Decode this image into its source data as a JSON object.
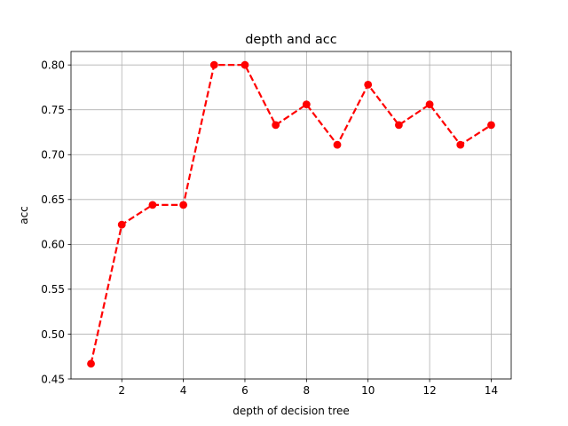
{
  "chart_data": {
    "type": "line",
    "title": "depth and acc",
    "xlabel": "depth of decision tree",
    "ylabel": "acc",
    "x": [
      1,
      2,
      3,
      4,
      5,
      6,
      7,
      8,
      9,
      10,
      11,
      12,
      13,
      14
    ],
    "series": [
      {
        "values": [
          0.467,
          0.622,
          0.644,
          0.644,
          0.8,
          0.8,
          0.733,
          0.756,
          0.711,
          0.778,
          0.733,
          0.756,
          0.711,
          0.733
        ],
        "color": "#ff0000",
        "linestyle": "dashed",
        "marker": "circle"
      }
    ],
    "xlim": [
      0.35,
      14.65
    ],
    "ylim": [
      0.45,
      0.815
    ],
    "xticks": [
      "2",
      "4",
      "6",
      "8",
      "10",
      "12",
      "14"
    ],
    "yticks": [
      "0.45",
      "0.50",
      "0.55",
      "0.60",
      "0.65",
      "0.70",
      "0.75",
      "0.80"
    ],
    "grid": true
  }
}
